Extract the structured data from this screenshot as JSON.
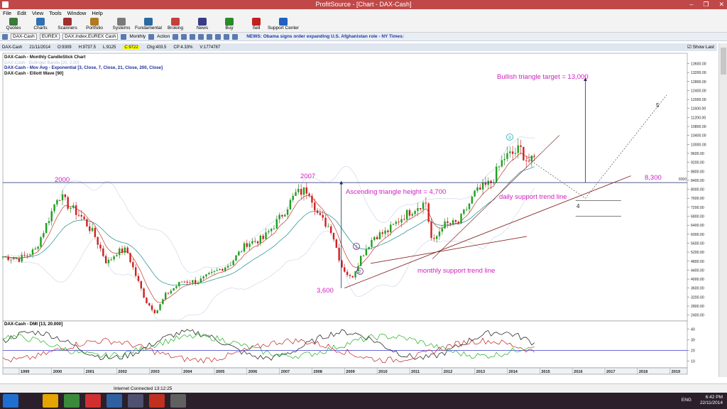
{
  "window": {
    "title": "ProfitSource - [Chart - DAX-Cash]",
    "minimize": "–",
    "maximize": "❐",
    "close": "✕"
  },
  "menu": [
    "File",
    "Edit",
    "View",
    "Tools",
    "Window",
    "Help"
  ],
  "toolbar": [
    {
      "label": "Quotes",
      "color": "#3a7a3a"
    },
    {
      "label": "Charts",
      "color": "#3070b0"
    },
    {
      "label": "Scanners",
      "color": "#a03030"
    },
    {
      "label": "Portfolio",
      "color": "#b07a20"
    },
    {
      "label": "Systems",
      "color": "#7a7a7a"
    },
    {
      "label": "Fundamental",
      "color": "#2a6aa0"
    },
    {
      "label": "Broking",
      "color": "#c04040"
    },
    {
      "label": "News",
      "color": "#3a3a8a"
    },
    {
      "label": "Buy",
      "color": "#2a8a2a"
    },
    {
      "label": "Sell",
      "color": "#c02020"
    },
    {
      "label": "Support Center",
      "color": "#2060c0"
    }
  ],
  "chartbar": {
    "symbol": "DAX-Cash",
    "exchange": "EUREX",
    "instrument": "DAX.Index.EUREX Cash",
    "period": "Monthly",
    "action": "Action",
    "news": "NEWS: Obama signs order expanding U.S. Afghanistan role - NY Times:"
  },
  "quote": {
    "symbol": "DAX-Cash",
    "date": "21/11/2014",
    "open": "O:9309",
    "high": "H:9737.5",
    "low": "L:9125",
    "last": "C:9722",
    "change": "Chg:403.5",
    "change_pct": "CP:4.33%",
    "volume": "V:1774787",
    "show_last": "Show Last"
  },
  "legend": {
    "line1": "DAX-Cash - Monthly CandleStick Chart",
    "line2": "DAX-Cash - Bollinger Bands [20, 2.00]",
    "line3": "DAX-Cash - Mov Avg - Exponential [3, Close, 7, Close, 21, Close, 200, Close]",
    "line4": "DAX-Cash - Elliott Wave [90]",
    "dmi": "DAX-Cash - DMI [13, 20.000]"
  },
  "annotations": {
    "target": "Bullish triangle target = 13,000",
    "y2000": "2000",
    "y2007": "2007",
    "level": "8,300",
    "level_axis": "8300",
    "height": "Ascending triangle height = 4,700",
    "daily": "daily support trend line",
    "monthly": "monthly support trend line",
    "low": "3,600",
    "wave1": "1",
    "wave2": "2",
    "wave3": "3",
    "wave4": "4",
    "wave5": "5"
  },
  "chart_data": {
    "type": "candlestick",
    "period": "monthly",
    "yticks": [
      13600,
      13200,
      12800,
      12400,
      12000,
      11600,
      11200,
      10800,
      10400,
      10000,
      9600,
      9200,
      8800,
      8400,
      8000,
      7600,
      7200,
      6800,
      6400,
      6000,
      5600,
      5200,
      4800,
      4400,
      4000,
      3600,
      3200,
      2800,
      2400
    ],
    "ylim": [
      2200,
      13900
    ],
    "xticks": [
      "1999",
      "2000",
      "2001",
      "2002",
      "2003",
      "2004",
      "2005",
      "2006",
      "2007",
      "2008",
      "2009",
      "2010",
      "2011",
      "2012",
      "2013",
      "2014",
      "2015",
      "2016",
      "2017",
      "2018",
      "2019"
    ],
    "dmi": {
      "yticks": [
        40,
        30,
        20,
        10
      ],
      "ylim": [
        5,
        45
      ],
      "threshold": 20
    },
    "close_path": [
      [
        1998.5,
        5000
      ],
      [
        1999.0,
        4900
      ],
      [
        1999.5,
        5300
      ],
      [
        2000.0,
        7000
      ],
      [
        2000.2,
        7800
      ],
      [
        2000.5,
        7300
      ],
      [
        2000.9,
        6800
      ],
      [
        2001.3,
        6000
      ],
      [
        2001.7,
        4700
      ],
      [
        2002.0,
        5200
      ],
      [
        2002.3,
        5300
      ],
      [
        2002.6,
        4100
      ],
      [
        2002.9,
        3000
      ],
      [
        2003.2,
        2500
      ],
      [
        2003.5,
        3300
      ],
      [
        2004.0,
        3900
      ],
      [
        2004.5,
        3900
      ],
      [
        2005.0,
        4300
      ],
      [
        2005.5,
        4700
      ],
      [
        2006.0,
        5600
      ],
      [
        2006.5,
        5800
      ],
      [
        2007.0,
        6700
      ],
      [
        2007.5,
        7800
      ],
      [
        2007.9,
        8000
      ],
      [
        2008.2,
        6800
      ],
      [
        2008.6,
        6200
      ],
      [
        2008.9,
        4600
      ],
      [
        2009.2,
        4000
      ],
      [
        2009.5,
        5000
      ],
      [
        2009.9,
        5900
      ],
      [
        2010.3,
        6100
      ],
      [
        2010.8,
        6800
      ],
      [
        2011.3,
        7300
      ],
      [
        2011.5,
        7400
      ],
      [
        2011.7,
        5500
      ],
      [
        2012.0,
        6400
      ],
      [
        2012.5,
        6500
      ],
      [
        2013.0,
        7800
      ],
      [
        2013.5,
        8300
      ],
      [
        2013.9,
        9400
      ],
      [
        2014.2,
        9600
      ],
      [
        2014.4,
        9800
      ],
      [
        2014.6,
        9300
      ],
      [
        2014.8,
        9200
      ],
      [
        2014.9,
        9722
      ]
    ],
    "horizontal_level": 8300,
    "upper_trend": [
      [
        2011.7,
        4900
      ],
      [
        2015.6,
        10400
      ]
    ],
    "daily_trend": [
      [
        2009.0,
        3600
      ],
      [
        2017.8,
        8600
      ]
    ],
    "monthly_trend": [
      [
        2009.8,
        4700
      ],
      [
        2014.6,
        5900
      ]
    ],
    "dotted_projection": [
      [
        2014.6,
        9400
      ],
      [
        2016.4,
        7600
      ],
      [
        2018.9,
        12200
      ]
    ],
    "target_arrow": [
      [
        2016.4,
        8300
      ],
      [
        2016.4,
        12900
      ]
    ],
    "height_arrow": [
      [
        2008.9,
        3600
      ],
      [
        2008.9,
        8300
      ]
    ],
    "support_box": [
      [
        2016.1,
        7500
      ],
      [
        2017.5,
        6800
      ]
    ]
  },
  "status": {
    "connection": "Internet Connected 13:12:25"
  },
  "taskbar": {
    "apps": [
      "#1e6fd0",
      "#e6a400",
      "#3b8a3b",
      "#d03030",
      "#3060a0",
      "#505070",
      "#c03020",
      "#606060"
    ],
    "lang": "ENG",
    "time": "6:42 PM",
    "date": "22/11/2014"
  }
}
